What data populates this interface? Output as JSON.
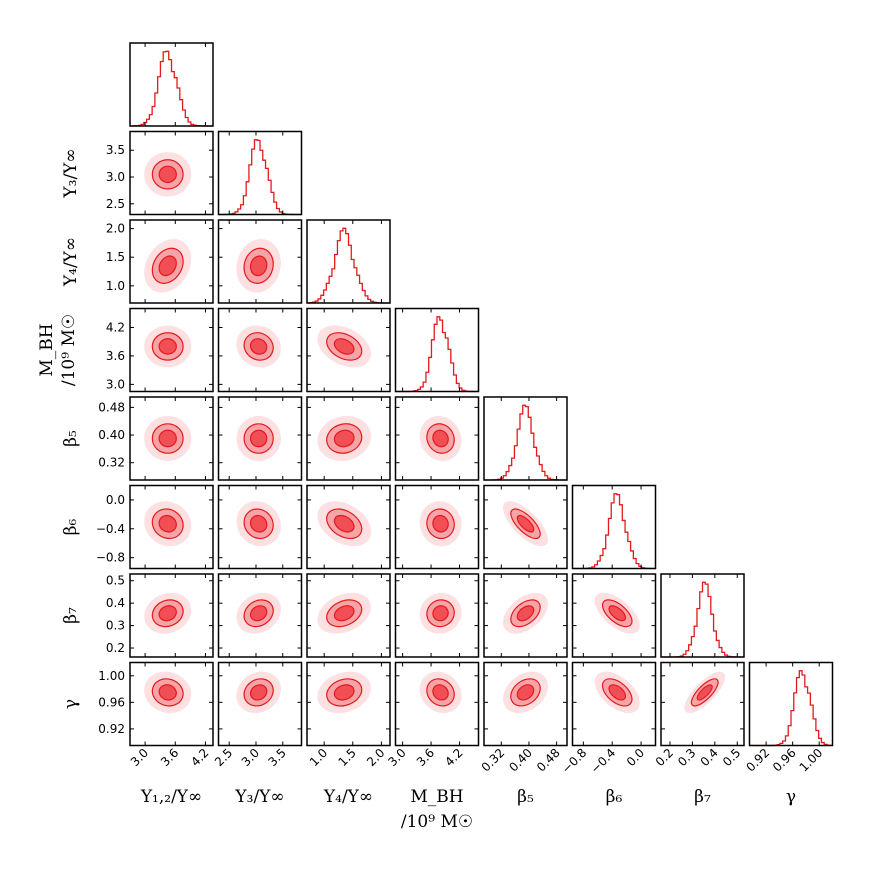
{
  "chart_data": {
    "type": "corner",
    "colors": {
      "line": "#e41a1c",
      "fill_inner": "#f24e55",
      "fill_mid": "#f7a4a8",
      "fill_outer": "#fde0e1",
      "axes": "#000000"
    },
    "params": [
      {
        "label": "Υ₁,₂/Υ∞",
        "label2": "",
        "range": [
          2.7,
          4.35
        ],
        "ticks": [
          3.0,
          3.6,
          4.2
        ],
        "tick_labels": [
          "3.0",
          "3.6",
          "4.2"
        ],
        "hist_peak": 3.45,
        "hist_sigma": 0.18
      },
      {
        "label": "Υ₃/Υ∞",
        "label2": "",
        "range": [
          2.3,
          3.85
        ],
        "ticks": [
          2.5,
          3.0,
          3.5
        ],
        "tick_labels": [
          "2.5",
          "3.0",
          "3.5"
        ],
        "hist_peak": 3.05,
        "hist_sigma": 0.16
      },
      {
        "label": "Υ₄/Υ∞",
        "label2": "",
        "range": [
          0.7,
          2.15
        ],
        "ticks": [
          1.0,
          1.5,
          2.0
        ],
        "tick_labels": [
          "1.0",
          "1.5",
          "2.0"
        ],
        "hist_peak": 1.35,
        "hist_sigma": 0.18
      },
      {
        "label": "M_BH",
        "label2": "/10⁹ M☉",
        "range": [
          2.85,
          4.6
        ],
        "ticks": [
          3.0,
          3.6,
          4.2
        ],
        "tick_labels": [
          "3.0",
          "3.6",
          "4.2"
        ],
        "hist_peak": 3.8,
        "hist_sigma": 0.17
      },
      {
        "label": "β₅",
        "label2": "",
        "range": [
          0.27,
          0.51
        ],
        "ticks": [
          0.32,
          0.4,
          0.48
        ],
        "tick_labels": [
          "0.32",
          "0.40",
          "0.48"
        ],
        "hist_peak": 0.39,
        "hist_sigma": 0.025
      },
      {
        "label": "β₆",
        "label2": "",
        "range": [
          -0.95,
          0.2
        ],
        "ticks": [
          -0.8,
          -0.4,
          0.0
        ],
        "tick_labels": [
          "−0.8",
          "−0.4",
          "0.0"
        ],
        "hist_peak": -0.33,
        "hist_sigma": 0.12
      },
      {
        "label": "β₇",
        "label2": "",
        "range": [
          0.16,
          0.53
        ],
        "ticks": [
          0.2,
          0.3,
          0.4,
          0.5
        ],
        "tick_labels": [
          "0.2",
          "0.3",
          "0.4",
          "0.5"
        ],
        "hist_peak": 0.355,
        "hist_sigma": 0.035
      },
      {
        "label": "γ",
        "label2": "",
        "range": [
          0.895,
          1.02
        ],
        "ticks": [
          0.92,
          0.96,
          1.0
        ],
        "tick_labels": [
          "0.92",
          "0.96",
          "1.00"
        ],
        "hist_peak": 0.975,
        "hist_sigma": 0.012
      }
    ],
    "correlations": [
      [
        0,
        0,
        0,
        0,
        0,
        0,
        0,
        0
      ],
      [
        0,
        0,
        0,
        0,
        0,
        0,
        0,
        0
      ],
      [
        0.25,
        0.1,
        0,
        0,
        0,
        0,
        0,
        0
      ],
      [
        0.0,
        -0.1,
        -0.35,
        0,
        0,
        0,
        0,
        0
      ],
      [
        0.0,
        0.0,
        0.1,
        -0.1,
        0,
        0,
        0,
        0
      ],
      [
        -0.1,
        -0.1,
        -0.35,
        -0.05,
        -0.7,
        0,
        0,
        0
      ],
      [
        0.15,
        0.2,
        0.3,
        0.05,
        0.45,
        -0.6,
        0,
        0
      ],
      [
        -0.1,
        0.15,
        0.2,
        -0.15,
        0.3,
        -0.5,
        0.75,
        0
      ]
    ]
  }
}
